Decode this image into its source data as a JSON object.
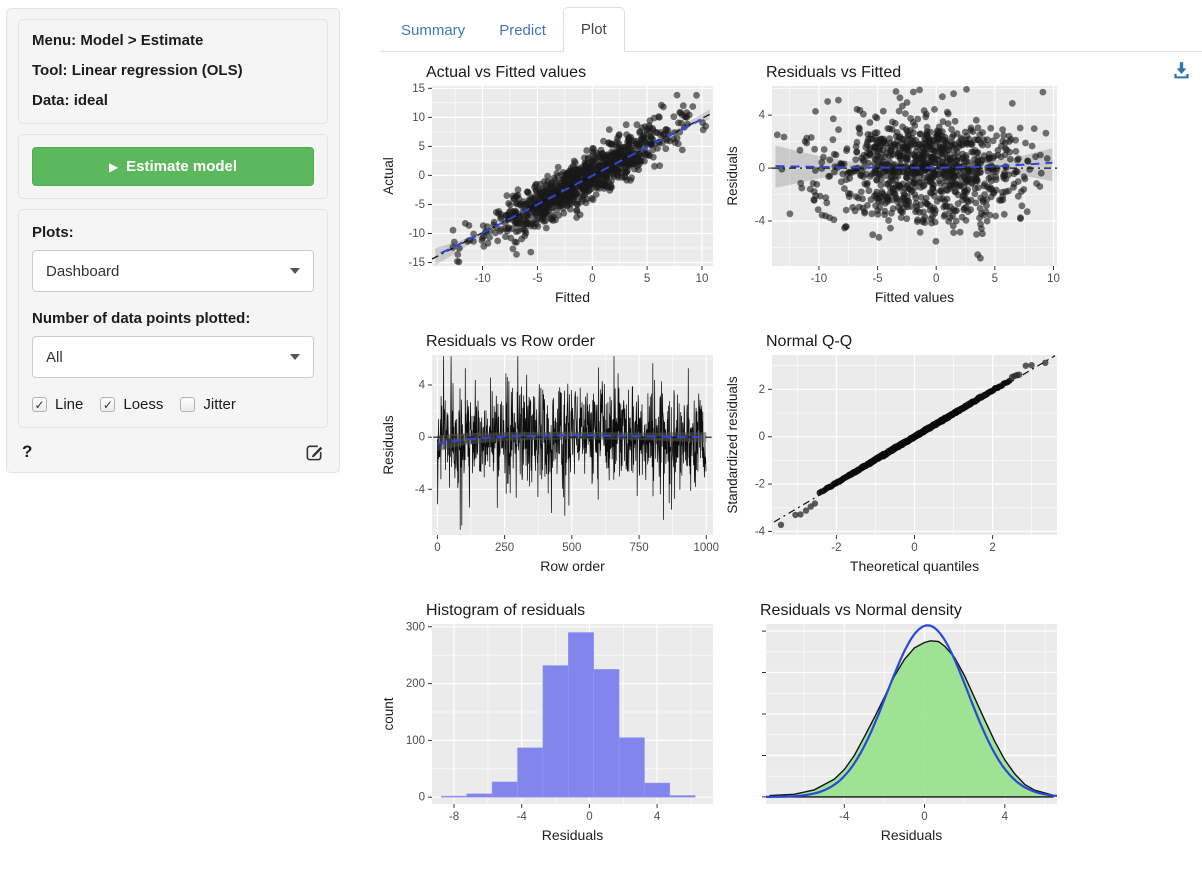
{
  "sidebar": {
    "info_lines": [
      {
        "label": "Menu:",
        "value": "Model > Estimate"
      },
      {
        "label": "Tool:",
        "value": "Linear regression (OLS)"
      },
      {
        "label": "Data:",
        "value": "ideal"
      }
    ],
    "estimate_button": {
      "icon": "▶",
      "label": "Estimate model"
    },
    "plots_label": "Plots:",
    "plots_select": "Dashboard",
    "npoints_label": "Number of data points plotted:",
    "npoints_select": "All",
    "checkboxes": [
      {
        "label": "Line",
        "checked": true
      },
      {
        "label": "Loess",
        "checked": true
      },
      {
        "label": "Jitter",
        "checked": false
      }
    ],
    "help_text": "?"
  },
  "tabs": [
    {
      "label": "Summary",
      "active": false
    },
    {
      "label": "Predict",
      "active": false
    },
    {
      "label": "Plot",
      "active": true
    }
  ],
  "colors": {
    "accent_blue": "#4078b9",
    "button_green": "#5cb85c",
    "download_blue": "#2e75ad",
    "panel_bg": "#ebebeb",
    "grid_major": "#ffffff",
    "tick_text": "#4d4d4d",
    "hist_bar": "#8286ec",
    "density_fill": "rgba(146,225,133,0.85)",
    "loess_blue": "#2b49d8"
  },
  "chart_data": [
    {
      "type": "scatter",
      "title": "Actual vs Fitted values",
      "xlabel": "Fitted",
      "ylabel": "Actual",
      "xlim": [
        -14.6,
        11.0
      ],
      "ylim": [
        -15.6,
        15.4
      ],
      "xticks": [
        -10,
        -5,
        0,
        5,
        10
      ],
      "yticks": [
        -15,
        -10,
        -5,
        0,
        5,
        10,
        15
      ],
      "panel_left": 52,
      "description": "~1000 points, Actual = Fitted + noise (sd ~2); dashed 45-degree line, blue dashed loess along diagonal, grey confidence ribbon widening at both ends",
      "layers": [
        {
          "type": "scatter_gen",
          "seed": 11,
          "n": 950,
          "x_mean": -1.2,
          "x_sd": 4.3,
          "x_min": -13.9,
          "x_max": 10.4,
          "y_rel": "diag",
          "noise_sd": 1.9,
          "y_min": -15.2,
          "y_max": 14.0,
          "r": 3.4,
          "fill": "rgba(25,25,25,0.6)"
        },
        {
          "type": "points",
          "pts": [
            [
              9.5,
              13.8
            ],
            [
              6.3,
              12.1
            ],
            [
              -5.6,
              -13.2
            ],
            [
              -6.9,
              -13.6
            ]
          ],
          "r": 3.4,
          "fill": "rgba(25,25,25,0.6)"
        },
        {
          "type": "ribbon",
          "upper": [
            [
              -14.3,
              -12.5
            ],
            [
              -12,
              -11.2
            ],
            [
              -10,
              -9.7
            ],
            [
              -6,
              -5.85
            ],
            [
              0,
              0.15
            ],
            [
              6,
              6.2
            ],
            [
              8.5,
              8.9
            ],
            [
              10.7,
              11.4
            ]
          ],
          "lower": [
            [
              -14.3,
              -15.5
            ],
            [
              -12,
              -12.9
            ],
            [
              -10,
              -10.3
            ],
            [
              -6,
              -6.2
            ],
            [
              0,
              -0.15
            ],
            [
              6,
              5.8
            ],
            [
              8.5,
              8.2
            ],
            [
              10.7,
              9.7
            ]
          ],
          "fill": "rgba(0,0,0,0.14)"
        },
        {
          "type": "line",
          "pts": [
            [
              -14.6,
              -14.4
            ],
            [
              11,
              10.8
            ]
          ],
          "stroke": "#111111",
          "w": 1.3,
          "dash": "7 4 2 4"
        },
        {
          "type": "line",
          "pts": [
            [
              -13.8,
              -13.4
            ],
            [
              -10,
              -9.9
            ],
            [
              -5,
              -5.0
            ],
            [
              0,
              -0.05
            ],
            [
              5,
              4.9
            ],
            [
              9.9,
              9.6
            ]
          ],
          "stroke": "#2b49d8",
          "w": 2,
          "dash": "9 6"
        }
      ]
    },
    {
      "type": "scatter",
      "title": "Residuals vs Fitted",
      "xlabel": "Fitted values",
      "ylabel": "Residuals",
      "xlim": [
        -14.0,
        10.3
      ],
      "ylim": [
        -7.4,
        6.2
      ],
      "xticks": [
        -10,
        -5,
        0,
        5,
        10
      ],
      "yticks": [
        -4,
        0,
        4
      ],
      "panel_left": 48,
      "description": "Residual cloud centered on zero; dash-dot zero line, flat blue loess, bow-tie grey ribbon",
      "layers": [
        {
          "type": "scatter_gen",
          "seed": 22,
          "n": 950,
          "x_mean": -0.8,
          "x_sd": 4.3,
          "x_min": -13.6,
          "x_max": 9.9,
          "y_rel": "norm",
          "y_mean": -0.15,
          "noise_sd": 2.05,
          "y_min": -7.2,
          "y_max": 6.1,
          "r": 3.4,
          "fill": "rgba(25,25,25,0.6)"
        },
        {
          "type": "ribbon",
          "upper": [
            [
              -13.7,
              1.7
            ],
            [
              -10,
              0.9
            ],
            [
              -7,
              0.45
            ],
            [
              -3,
              0.3
            ],
            [
              0,
              0.28
            ],
            [
              4,
              0.45
            ],
            [
              7,
              0.85
            ],
            [
              9.9,
              1.5
            ]
          ],
          "lower": [
            [
              -13.7,
              -1.5
            ],
            [
              -10,
              -0.8
            ],
            [
              -7,
              -0.3
            ],
            [
              -3,
              -0.1
            ],
            [
              0,
              -0.1
            ],
            [
              4,
              -0.2
            ],
            [
              7,
              -0.5
            ],
            [
              9.9,
              -1.0
            ]
          ],
          "fill": "rgba(0,0,0,0.14)"
        },
        {
          "type": "line",
          "pts": [
            [
              -14,
              0
            ],
            [
              10.3,
              0
            ]
          ],
          "stroke": "#111111",
          "w": 1.3,
          "dash": "7 4 2 4"
        },
        {
          "type": "line",
          "pts": [
            [
              -13.7,
              0.15
            ],
            [
              -8,
              0.05
            ],
            [
              0,
              0.02
            ],
            [
              5,
              0.12
            ],
            [
              9.9,
              0.4
            ]
          ],
          "stroke": "#2b49d8",
          "w": 2,
          "dash": "9 6"
        }
      ]
    },
    {
      "type": "line",
      "title": "Residuals vs Row order",
      "xlabel": "Row order",
      "ylabel": "Residuals",
      "xlim": [
        -20,
        1025
      ],
      "ylim": [
        -7.5,
        6.3
      ],
      "xticks": [
        0,
        250,
        500,
        750,
        1000
      ],
      "yticks": [
        -4,
        0,
        4
      ],
      "panel_left": 52,
      "description": "Residuals connected in row order (n=1000), spiky black trace; dash-dot zero line, blue loess near zero with narrow grey ribbon",
      "layers": [
        {
          "type": "path_gen",
          "seed": 33,
          "n": 1000,
          "sd": 1.9,
          "spike_p": 0.04,
          "spike_mult": 1.9,
          "y_min": -7.3,
          "y_max": 6.2,
          "stroke": "#0d0d0d",
          "w": 0.75
        },
        {
          "type": "ribbon",
          "upper": [
            [
              0,
              0.15
            ],
            [
              100,
              0.3
            ],
            [
              250,
              0.38
            ],
            [
              500,
              0.42
            ],
            [
              750,
              0.35
            ],
            [
              1000,
              0.38
            ]
          ],
          "lower": [
            [
              0,
              -1.05
            ],
            [
              100,
              -0.6
            ],
            [
              250,
              -0.28
            ],
            [
              500,
              -0.15
            ],
            [
              750,
              -0.22
            ],
            [
              1000,
              -0.38
            ]
          ],
          "fill": "rgba(80,80,80,0.6)"
        },
        {
          "type": "line",
          "pts": [
            [
              -15,
              0
            ],
            [
              1020,
              0
            ]
          ],
          "stroke": "#111111",
          "w": 1.2,
          "dash": "7 4 2 4"
        },
        {
          "type": "line",
          "pts": [
            [
              0,
              -0.5
            ],
            [
              100,
              -0.18
            ],
            [
              250,
              0.05
            ],
            [
              500,
              0.14
            ],
            [
              750,
              0.07
            ],
            [
              1000,
              0.0
            ]
          ],
          "stroke": "#2b49d8",
          "w": 2,
          "dash": "9 6"
        }
      ]
    },
    {
      "type": "scatter",
      "title": "Normal Q-Q",
      "xlabel": "Theoretical quantiles",
      "ylabel": "Standardized residuals",
      "xlim": [
        -3.65,
        3.65
      ],
      "ylim": [
        -4.15,
        3.45
      ],
      "xticks": [
        -2,
        0,
        2
      ],
      "yticks": [
        -4,
        -2,
        0,
        2
      ],
      "panel_left": 48,
      "description": "Standardized residual quantiles hug the dash-dot reference line; a few separated points at both tails",
      "layers": [
        {
          "type": "line",
          "pts": [
            [
              -3.6,
              -3.6
            ],
            [
              3.6,
              3.42
            ]
          ],
          "stroke": "#111111",
          "w": 1.2,
          "dash": "7 4 2 4"
        },
        {
          "type": "qq_gen",
          "seed": 44,
          "n": 1000,
          "slope": 0.975,
          "jit": 0.02,
          "tmax": 2.45,
          "r": 3.0,
          "fill": "rgba(12,12,12,0.85)"
        },
        {
          "type": "points",
          "pts": [
            [
              -3.42,
              -3.72
            ],
            [
              -3.05,
              -3.3
            ],
            [
              -2.92,
              -3.28
            ],
            [
              -2.78,
              -3.12
            ],
            [
              -2.66,
              -2.95
            ],
            [
              -2.55,
              -2.82
            ],
            [
              2.5,
              2.52
            ],
            [
              2.56,
              2.56
            ],
            [
              2.62,
              2.6
            ],
            [
              2.68,
              2.62
            ],
            [
              2.85,
              3.0
            ],
            [
              3.0,
              3.02
            ],
            [
              3.35,
              3.12
            ]
          ],
          "r": 3.2,
          "fill": "rgba(40,40,40,0.75)"
        }
      ]
    },
    {
      "type": "bar",
      "title": "Histogram of residuals",
      "xlabel": "Residuals",
      "ylabel": "count",
      "xlim": [
        -9.3,
        7.3
      ],
      "ylim": [
        -12,
        305
      ],
      "xticks": [
        -8,
        -4,
        0,
        4
      ],
      "yticks": [
        0,
        100,
        200,
        300
      ],
      "panel_left": 52,
      "bin_edges": [
        -8.75,
        -7.25,
        -5.75,
        -4.25,
        -2.75,
        -1.25,
        0.25,
        1.75,
        3.25,
        4.75,
        6.25
      ],
      "counts": [
        2,
        6,
        27,
        87,
        232,
        290,
        225,
        105,
        25,
        3
      ],
      "layers": [
        {
          "type": "bars",
          "edges": [
            -8.75,
            -7.25,
            -5.75,
            -4.25,
            -2.75,
            -1.25,
            0.25,
            1.75,
            3.25,
            4.75,
            6.25
          ],
          "counts": [
            2,
            6,
            27,
            87,
            232,
            290,
            225,
            105,
            25,
            3
          ],
          "fill": "#8286ec",
          "stroke": "#989bf0"
        }
      ]
    },
    {
      "type": "area",
      "title": "Residuals vs Normal density",
      "xlabel": "Residuals",
      "ylabel": "",
      "xlim": [
        -7.9,
        6.6
      ],
      "ylim": [
        -0.008,
        0.196
      ],
      "xticks": [
        -4,
        0,
        4
      ],
      "yticks": [
        0,
        0.047,
        0.094,
        0.141,
        0.188
      ],
      "ytick_labels": false,
      "panel_left": 42,
      "description": "Green filled kernel density of residuals (black outline) with overlaid blue normal density curve; y-axis ticks unlabeled",
      "layers": [
        {
          "type": "area",
          "pts": [
            [
              -7.7,
              0.0015
            ],
            [
              -6.5,
              0.003
            ],
            [
              -5.5,
              0.008
            ],
            [
              -4.5,
              0.02
            ],
            [
              -4,
              0.031
            ],
            [
              -3.5,
              0.047
            ],
            [
              -3,
              0.068
            ],
            [
              -2.5,
              0.09
            ],
            [
              -2,
              0.113
            ],
            [
              -1.5,
              0.137
            ],
            [
              -1,
              0.156
            ],
            [
              -0.5,
              0.169
            ],
            [
              0,
              0.175
            ],
            [
              0.3,
              0.177
            ],
            [
              0.7,
              0.176
            ],
            [
              1,
              0.171
            ],
            [
              1.5,
              0.158
            ],
            [
              2,
              0.137
            ],
            [
              2.5,
              0.112
            ],
            [
              3,
              0.087
            ],
            [
              3.5,
              0.063
            ],
            [
              4,
              0.042
            ],
            [
              4.5,
              0.026
            ],
            [
              5,
              0.014
            ],
            [
              5.5,
              0.0075
            ],
            [
              6.4,
              0.002
            ]
          ],
          "fill": "rgba(146,225,133,0.85)",
          "stroke": "#141414",
          "w": 1.4
        },
        {
          "type": "curve_norm",
          "mean": 0.15,
          "sd": 2.02,
          "scale": 0.985,
          "stroke": "#2b49d8",
          "w": 2.2
        }
      ]
    }
  ]
}
